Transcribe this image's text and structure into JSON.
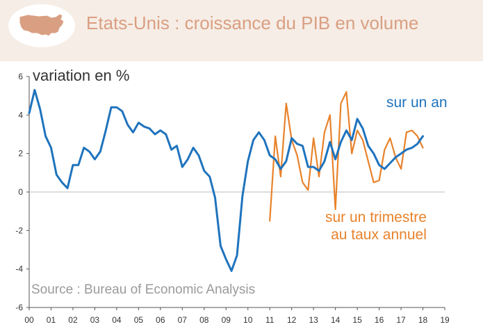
{
  "title": "Etats-Unis : croissance du PIB en volume",
  "icon": "usa-map-icon",
  "colors": {
    "header_bg": "#f6ede6",
    "title": "#d99f82",
    "series_year": "#1f73bd",
    "series_quarter": "#e8822b",
    "source": "#9a9a9a"
  },
  "chart_data": {
    "type": "line",
    "title": "Etats-Unis : croissance du PIB en volume",
    "ylabel": "variation en %",
    "xlabel": "",
    "ylim": [
      -6,
      6
    ],
    "yticks": [
      "6",
      "4",
      "2",
      "0",
      "-2",
      "-4",
      "-6"
    ],
    "xlim": [
      2000,
      2019
    ],
    "xticks": [
      "00",
      "01",
      "02",
      "03",
      "04",
      "05",
      "06",
      "07",
      "08",
      "09",
      "10",
      "11",
      "12",
      "13",
      "14",
      "15",
      "16",
      "17",
      "18",
      "19"
    ],
    "grid": false,
    "series": [
      {
        "name": "sur un an",
        "color": "#1f73bd",
        "x": [
          2000.0,
          2000.25,
          2000.5,
          2000.75,
          2001.0,
          2001.25,
          2001.5,
          2001.75,
          2002.0,
          2002.25,
          2002.5,
          2002.75,
          2003.0,
          2003.25,
          2003.5,
          2003.75,
          2004.0,
          2004.25,
          2004.5,
          2004.75,
          2005.0,
          2005.25,
          2005.5,
          2005.75,
          2006.0,
          2006.25,
          2006.5,
          2006.75,
          2007.0,
          2007.25,
          2007.5,
          2007.75,
          2008.0,
          2008.25,
          2008.5,
          2008.75,
          2009.0,
          2009.25,
          2009.5,
          2009.75,
          2010.0,
          2010.25,
          2010.5,
          2010.75,
          2011.0,
          2011.25,
          2011.5,
          2011.75,
          2012.0,
          2012.25,
          2012.5,
          2012.75,
          2013.0,
          2013.25,
          2013.5,
          2013.75,
          2014.0,
          2014.25,
          2014.5,
          2014.75,
          2015.0,
          2015.25,
          2015.5,
          2015.75,
          2016.0,
          2016.25,
          2016.5,
          2016.75,
          2017.0,
          2017.25,
          2017.5,
          2017.75,
          2018.0
        ],
        "values": [
          4.1,
          5.3,
          4.3,
          2.9,
          2.3,
          0.9,
          0.5,
          0.2,
          1.4,
          1.4,
          2.3,
          2.1,
          1.7,
          2.1,
          3.2,
          4.4,
          4.4,
          4.2,
          3.5,
          3.1,
          3.6,
          3.4,
          3.3,
          3.0,
          3.2,
          3.0,
          2.2,
          2.4,
          1.3,
          1.7,
          2.3,
          1.9,
          1.1,
          0.8,
          -0.3,
          -2.8,
          -3.5,
          -4.1,
          -3.3,
          -0.2,
          1.6,
          2.7,
          3.1,
          2.7,
          1.9,
          1.7,
          1.2,
          1.6,
          2.8,
          2.5,
          2.4,
          1.3,
          1.3,
          1.1,
          1.6,
          2.6,
          1.7,
          2.6,
          3.2,
          2.7,
          3.8,
          3.3,
          2.4,
          2.0,
          1.4,
          1.2,
          1.5,
          1.8,
          2.0,
          2.2,
          2.3,
          2.5,
          2.9
        ]
      },
      {
        "name": "sur un trimestre au taux annuel",
        "color": "#e8822b",
        "x": [
          2011.0,
          2011.25,
          2011.5,
          2011.75,
          2012.0,
          2012.25,
          2012.5,
          2012.75,
          2013.0,
          2013.25,
          2013.5,
          2013.75,
          2014.0,
          2014.25,
          2014.5,
          2014.75,
          2015.0,
          2015.25,
          2015.5,
          2015.75,
          2016.0,
          2016.25,
          2016.5,
          2016.75,
          2017.0,
          2017.25,
          2017.5,
          2017.75,
          2018.0
        ],
        "values": [
          -1.5,
          2.9,
          0.8,
          4.6,
          2.7,
          1.9,
          0.5,
          0.1,
          2.8,
          0.8,
          3.1,
          4.0,
          -0.9,
          4.6,
          5.2,
          2.0,
          3.2,
          2.7,
          1.6,
          0.5,
          0.6,
          2.2,
          2.8,
          1.8,
          1.2,
          3.1,
          3.2,
          2.9,
          2.3
        ]
      }
    ],
    "annotations": [
      "sur un an",
      "sur un trimestre",
      "au taux annuel"
    ],
    "source": "Source : Bureau of Economic Analysis"
  }
}
